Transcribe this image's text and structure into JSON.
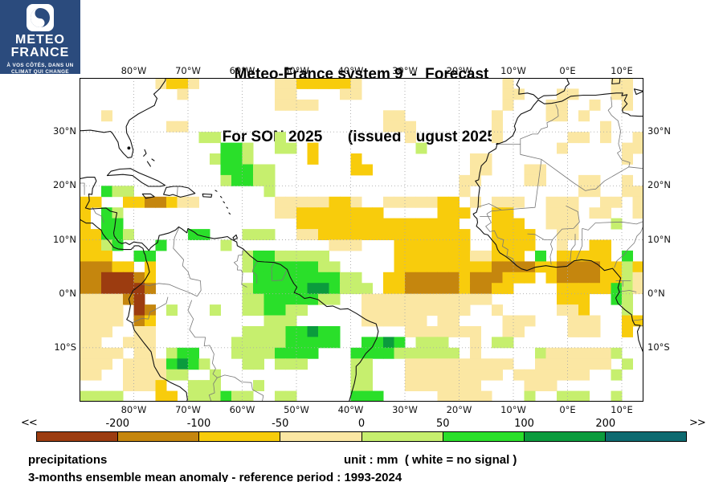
{
  "logo": {
    "brand_line1": "METEO",
    "brand_line2": "FRANCE",
    "tagline_line1": "À VOS CÔTÉS, DANS UN",
    "tagline_line2": "CLIMAT QUI CHANGE",
    "bg_color": "#2B4B7D"
  },
  "title": {
    "line1": "Meteo-France system 9  -  Forecast",
    "line2": "For SON 2025      (issued August 2025)"
  },
  "map": {
    "lon_labels": [
      {
        "text": "80°W",
        "lon": -80
      },
      {
        "text": "70°W",
        "lon": -70
      },
      {
        "text": "60°W",
        "lon": -60
      },
      {
        "text": "50°W",
        "lon": -50
      },
      {
        "text": "40°W",
        "lon": -40
      },
      {
        "text": "30°W",
        "lon": -30
      },
      {
        "text": "20°W",
        "lon": -20
      },
      {
        "text": "10°W",
        "lon": -10
      },
      {
        "text": "0°E",
        "lon": 0
      },
      {
        "text": "10°E",
        "lon": 10
      }
    ],
    "lat_labels": [
      {
        "text": "30°N",
        "lat": 30
      },
      {
        "text": "20°N",
        "lat": 20
      },
      {
        "text": "10°N",
        "lat": 10
      },
      {
        "text": "0°N",
        "lat": 0
      },
      {
        "text": "10°S",
        "lat": -10
      }
    ]
  },
  "colorbar": {
    "left_arrow": "<<",
    "right_arrow": ">>",
    "segment_colors": [
      "#9C3C10",
      "#C5860E",
      "#F8CC0C",
      "#FBE7A3",
      "#C6EF6E",
      "#2ADF2A",
      "#0B9B3D",
      "#0E6A70"
    ],
    "boundary_labels": [
      "-200",
      "-100",
      "-50",
      "0",
      "50",
      "100",
      "200"
    ]
  },
  "footer": {
    "label": "precipitations",
    "unit": "unit : mm  ( white = no signal )",
    "reference": "3-months ensemble mean anomaly - reference period : 1993-2024"
  },
  "chart_data": {
    "type": "heatmap",
    "title": "Meteo-France system 9 - Forecast For SON 2025 (issued August 2025)",
    "variable": "precipitations",
    "unit": "mm",
    "note": "white = no signal",
    "reference_period": "1993-2024",
    "season": "SON 2025",
    "issued": "August 2025",
    "lon_range": [
      -90,
      14
    ],
    "lat_range": [
      -20,
      40
    ],
    "cell_size_deg": 2,
    "palette": {
      "a": "#FBE7A3",
      "b": "#F8CC0C",
      "c": "#C5860E",
      "d": "#9C3C10",
      "e": "#C6EF6E",
      "f": "#2ADF2A",
      "g": "#0B9B3D",
      "h": "#0E6A70"
    },
    "anomaly_bins_mm": {
      "d": "< -200",
      "c": "-200 to -100",
      "b": "-100 to -50",
      "a": "-50 to 0",
      "e": "0 to 50",
      "f": "50 to 100",
      "g": "100 to 200",
      "h": "> 200",
      ".": "no signal"
    },
    "grid_rows_north_to_south": [
      ".......abba.......aabbbbba.............a.........aa.",
      ".........a........aa....aa.............aa...aa...aa.",
      "..................aaaa.................a...aa..a..a.",
      "..a.........................aa........a....aa.a.....",
      "........aa..................aaa.......a.........a...",
      "...........ee.....e...........a.......a......aa.a..a",
      ".............ffe..ee.b.........e............a.....aa",
      "............effe.....b...b..........aa............a.",
      ".............fffee.......bb.........aa...aa.........",
      ".............effee.................aa....aa...aa..a.",
      "..fee............e.................a..........aa..aa",
      "bb..bbccbaa.......aaaaabba..aaaaabb.a.aaa..aaa..aa.a",
      "b.fe..............aabbbbbbbb.....bbb..bb...aaa.aa..a",
      "b.ff................bbbbbbbbbbbbbbb...bbb..aaa...e..",
      "bbffe.....ff...eee..aabbbbbbbbbbbbbb..bbbb..aa......",
      "bbef...f.....e.........aaa...bbbbbbb..bbbb..a..bb...",
      "bbb..ff........effeeeee......bbbbbbbaabbb.f.bbbbb.f.",
      "cccbb.b........effffffee.....bbbbbbbbbccccbbccccbbeb",
      "ccdddcb.........ffffffffee..bbcccccbcccbbb.bccccbbea",
      "ccddddc........efffffggfeee.bbcccccbccbb....bbbbbfea",
      "aaaacd.........eefffffee..aaaaaaaaaaaa......bbb..fe.",
      "aaaa.dc.e...e..eeffee.....aaaaaaaaaa..a.....aab...e.",
      "aaaa.cb..........eee......aaaaaa.aa....aaa...aaa..bb",
      "aaa..aa........eeeeffgff......aaaaaaa..aa....aaa..b.",
      "aa..aaa.......eeeeefffff..ffgf.eee..a.ee............",
      "aaaa.aa.eff...eeeeffff...ffffeeeeee.a.....eaaaaaae..",
      "aaa.aaaafgfe...ee.eee....ee...aaaaaaaaaa..aaaaaaa.e.",
      "aa..aaaaee..e............ee...aaaaaaaaa.aaaaaaa..e..",
      "....aaab..eee...e........ee...aaaaaaa....aaa........",
      "eeee...bb.eeefee..ee.....fff.....aaaaa...e..eee..e.."
    ]
  }
}
